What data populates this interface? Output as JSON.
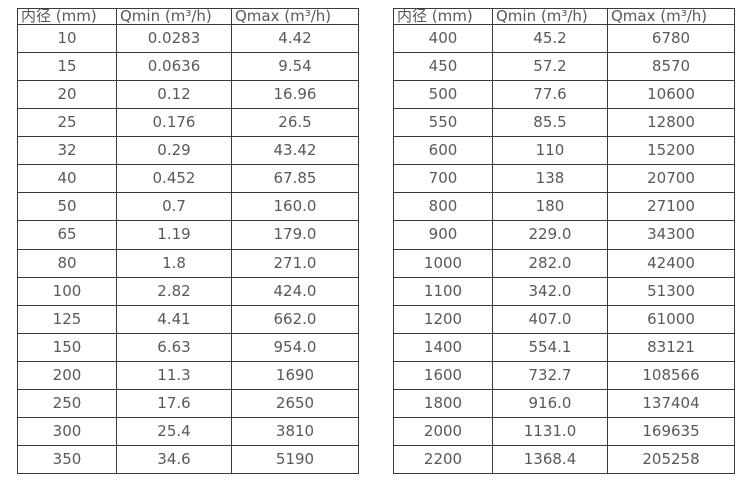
{
  "tables": [
    {
      "name": "flow-table-small-diameters",
      "headers": [
        "内径 (mm)",
        "Qmin (m³/h)",
        "Qmax (m³/h)"
      ],
      "rows": [
        [
          "10",
          "0.0283",
          "4.42"
        ],
        [
          "15",
          "0.0636",
          "9.54"
        ],
        [
          "20",
          "0.12",
          "16.96"
        ],
        [
          "25",
          "0.176",
          "26.5"
        ],
        [
          "32",
          "0.29",
          "43.42"
        ],
        [
          "40",
          "0.452",
          "67.85"
        ],
        [
          "50",
          "0.7",
          "160.0"
        ],
        [
          "65",
          "1.19",
          "179.0"
        ],
        [
          "80",
          "1.8",
          "271.0"
        ],
        [
          "100",
          "2.82",
          "424.0"
        ],
        [
          "125",
          "4.41",
          "662.0"
        ],
        [
          "150",
          "6.63",
          "954.0"
        ],
        [
          "200",
          "11.3",
          "1690"
        ],
        [
          "250",
          "17.6",
          "2650"
        ],
        [
          "300",
          "25.4",
          "3810"
        ],
        [
          "350",
          "34.6",
          "5190"
        ]
      ]
    },
    {
      "name": "flow-table-large-diameters",
      "headers": [
        "内径 (mm)",
        "Qmin (m³/h)",
        "Qmax (m³/h)"
      ],
      "rows": [
        [
          "400",
          "45.2",
          "6780"
        ],
        [
          "450",
          "57.2",
          "8570"
        ],
        [
          "500",
          "77.6",
          "10600"
        ],
        [
          "550",
          "85.5",
          "12800"
        ],
        [
          "600",
          "110",
          "15200"
        ],
        [
          "700",
          "138",
          "20700"
        ],
        [
          "800",
          "180",
          "27100"
        ],
        [
          "900",
          "229.0",
          "34300"
        ],
        [
          "1000",
          "282.0",
          "42400"
        ],
        [
          "1100",
          "342.0",
          "51300"
        ],
        [
          "1200",
          "407.0",
          "61000"
        ],
        [
          "1400",
          "554.1",
          "83121"
        ],
        [
          "1600",
          "732.7",
          "108566"
        ],
        [
          "1800",
          "916.0",
          "137404"
        ],
        [
          "2000",
          "1131.0",
          "169635"
        ],
        [
          "2200",
          "1368.4",
          "205258"
        ]
      ]
    }
  ],
  "colors": {
    "border": "#3a3a3a",
    "text": "#595959",
    "background": "#ffffff"
  }
}
